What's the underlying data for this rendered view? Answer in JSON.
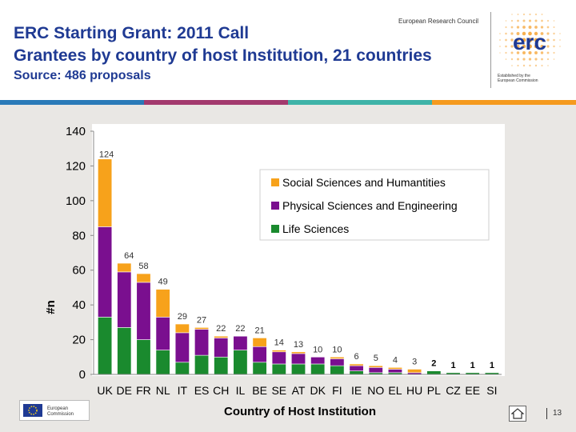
{
  "header": {
    "title_line1": "ERC Starting Grant: 2011 Call",
    "title_line2": "Grantees by country of host Institution, 21 countries",
    "subtitle": "Source: 486 proposals",
    "council_label": "European Research Council",
    "logo_text": "erc",
    "established_line1": "Established by the",
    "established_line2": "European Commission"
  },
  "footer": {
    "commission_label_line1": "European",
    "commission_label_line2": "Commission",
    "page_number": "13"
  },
  "colors": {
    "social": "#f7a21b",
    "physical": "#7a0f8f",
    "life": "#1a8a2e",
    "title": "#1f3a93",
    "stripe1": "#2a7ab8",
    "stripe2": "#a33a6e",
    "stripe3": "#3fb3a8",
    "stripe4": "#f59a1e"
  },
  "chart_data": {
    "type": "bar",
    "stacked": true,
    "categories": [
      "UK",
      "DE",
      "FR",
      "NL",
      "IT",
      "ES",
      "CH",
      "IL",
      "BE",
      "SE",
      "AT",
      "DK",
      "FI",
      "IE",
      "NO",
      "EL",
      "HU",
      "PL",
      "CZ",
      "EE",
      "SI"
    ],
    "totals": [
      124,
      64,
      58,
      49,
      29,
      27,
      22,
      22,
      21,
      14,
      13,
      10,
      10,
      6,
      5,
      4,
      3,
      2,
      1,
      1,
      1
    ],
    "series": [
      {
        "name": "Social Sciences and Humantities",
        "color": "#f7a21b",
        "values": [
          39,
          5,
          5,
          16,
          5,
          1,
          1,
          0,
          5,
          1,
          1,
          0,
          1,
          1,
          1,
          1,
          2,
          0,
          0,
          0,
          0
        ]
      },
      {
        "name": "Physical Sciences and Engineering",
        "color": "#7a0f8f",
        "values": [
          52,
          32,
          33,
          19,
          17,
          15,
          11,
          8,
          9,
          7,
          6,
          4,
          4,
          3,
          3,
          2,
          1,
          0,
          0,
          0,
          0
        ]
      },
      {
        "name": "Life Sciences",
        "color": "#1a8a2e",
        "values": [
          33,
          27,
          20,
          14,
          7,
          11,
          10,
          14,
          7,
          6,
          6,
          6,
          5,
          2,
          1,
          1,
          0,
          2,
          1,
          1,
          1
        ]
      }
    ],
    "legend_order": [
      0,
      1,
      2
    ],
    "xlabel": "Country of Host Institution",
    "ylabel": "#n",
    "ylim": [
      0,
      140
    ],
    "yticks": [
      0,
      20,
      40,
      60,
      80,
      100,
      120,
      140
    ],
    "grid": false,
    "legend_position": "upper-right"
  }
}
